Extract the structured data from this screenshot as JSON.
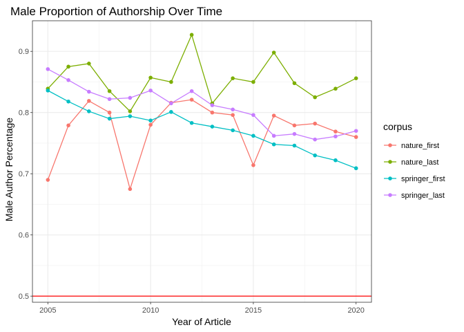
{
  "chart_data": {
    "type": "line",
    "title": "Male Proportion of Authorship Over Time",
    "xlabel": "Year of Article",
    "ylabel": "Male Author Percentage",
    "xlim": [
      2004.25,
      2020.75
    ],
    "ylim": [
      0.49,
      0.95
    ],
    "x_ticks": [
      2005,
      2010,
      2015,
      2020
    ],
    "x_tick_labels": [
      "2005",
      "2010",
      "2015",
      "2020"
    ],
    "y_ticks": [
      0.5,
      0.6,
      0.7,
      0.8,
      0.9
    ],
    "y_tick_labels": [
      "0.5",
      "0.6",
      "0.7",
      "0.8",
      "0.9"
    ],
    "grid": true,
    "legend": {
      "title": "corpus",
      "placement": "right"
    },
    "x": [
      2005,
      2006,
      2007,
      2008,
      2009,
      2010,
      2011,
      2012,
      2013,
      2014,
      2015,
      2016,
      2017,
      2018,
      2019,
      2020
    ],
    "series": [
      {
        "name": "nature_first",
        "color": "#F8766D",
        "values": [
          0.69,
          0.779,
          0.819,
          0.8,
          0.675,
          0.78,
          0.816,
          0.821,
          0.8,
          0.796,
          0.714,
          0.795,
          0.779,
          0.782,
          0.769,
          0.76
        ]
      },
      {
        "name": "nature_last",
        "color": "#7CAE00",
        "values": [
          0.839,
          0.875,
          0.88,
          0.835,
          0.802,
          0.857,
          0.85,
          0.927,
          0.815,
          0.856,
          0.85,
          0.898,
          0.848,
          0.825,
          0.839,
          0.856
        ]
      },
      {
        "name": "springer_first",
        "color": "#00BFC4",
        "values": [
          0.836,
          0.818,
          0.802,
          0.79,
          0.794,
          0.787,
          0.801,
          0.783,
          0.777,
          0.771,
          0.762,
          0.748,
          0.746,
          0.73,
          0.722,
          0.709
        ]
      },
      {
        "name": "springer_last",
        "color": "#C77CFF",
        "values": [
          0.871,
          0.853,
          0.834,
          0.822,
          0.824,
          0.836,
          0.815,
          0.835,
          0.812,
          0.805,
          0.796,
          0.762,
          0.765,
          0.756,
          0.761,
          0.77
        ]
      }
    ],
    "reference_line": {
      "y": 0.5,
      "color": "#FF0000"
    }
  }
}
